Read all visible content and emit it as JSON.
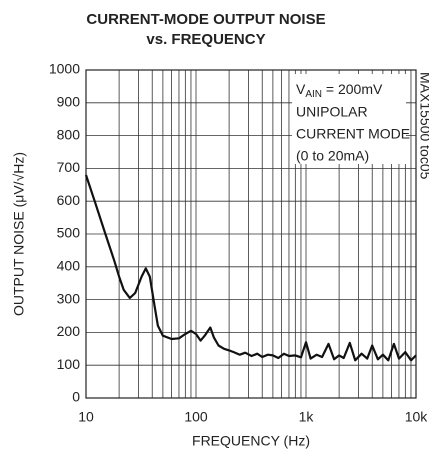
{
  "chart_data": {
    "type": "line",
    "title": [
      "CURRENT-MODE OUTPUT NOISE",
      "vs. FREQUENCY"
    ],
    "xlabel": "FREQUENCY (Hz)",
    "ylabel": "OUTPUT NOISE (μV/√Hz)",
    "side_note": "MAX15500 toc05",
    "annotation": {
      "symbol": "V",
      "subscript": "AIN",
      "rest": " = 200mV",
      "lines": [
        "UNIPOLAR",
        "CURRENT MODE",
        "(0 to 20mA)"
      ]
    },
    "xscale": "log",
    "grid": true,
    "xlim": [
      10,
      10000
    ],
    "ylim": [
      0,
      1000
    ],
    "xticks": [
      10,
      100,
      {
        "value": 1000,
        "label": "1k"
      },
      {
        "value": 10000,
        "label": "10k"
      }
    ],
    "xminorticks": [
      20,
      30,
      40,
      50,
      60,
      70,
      80,
      90,
      200,
      300,
      400,
      500,
      600,
      700,
      800,
      900,
      2000,
      3000,
      4000,
      5000,
      6000,
      7000,
      8000,
      9000
    ],
    "yticks": [
      0,
      100,
      200,
      300,
      400,
      500,
      600,
      700,
      800,
      900,
      1000
    ],
    "series": [
      {
        "name": "noise",
        "color": "#111111",
        "x": [
          10,
          12,
          15,
          18,
          20,
          22,
          25,
          28,
          32,
          35,
          38,
          42,
          45,
          50,
          60,
          70,
          80,
          90,
          100,
          110,
          120,
          135,
          145,
          160,
          180,
          200,
          220,
          250,
          280,
          320,
          360,
          400,
          450,
          500,
          560,
          630,
          700,
          800,
          900,
          1000,
          1100,
          1250,
          1400,
          1600,
          1800,
          2000,
          2200,
          2500,
          2800,
          3200,
          3600,
          4000,
          4500,
          5000,
          5600,
          6300,
          7000,
          8000,
          9000,
          10000
        ],
        "values": [
          680,
          600,
          500,
          420,
          370,
          330,
          305,
          320,
          370,
          395,
          370,
          280,
          220,
          190,
          180,
          182,
          195,
          205,
          195,
          175,
          190,
          215,
          185,
          160,
          150,
          145,
          140,
          132,
          138,
          128,
          135,
          125,
          132,
          130,
          122,
          135,
          128,
          130,
          124,
          170,
          120,
          132,
          125,
          165,
          118,
          130,
          122,
          168,
          115,
          135,
          120,
          160,
          118,
          132,
          115,
          165,
          120,
          140,
          115,
          130
        ]
      }
    ]
  }
}
